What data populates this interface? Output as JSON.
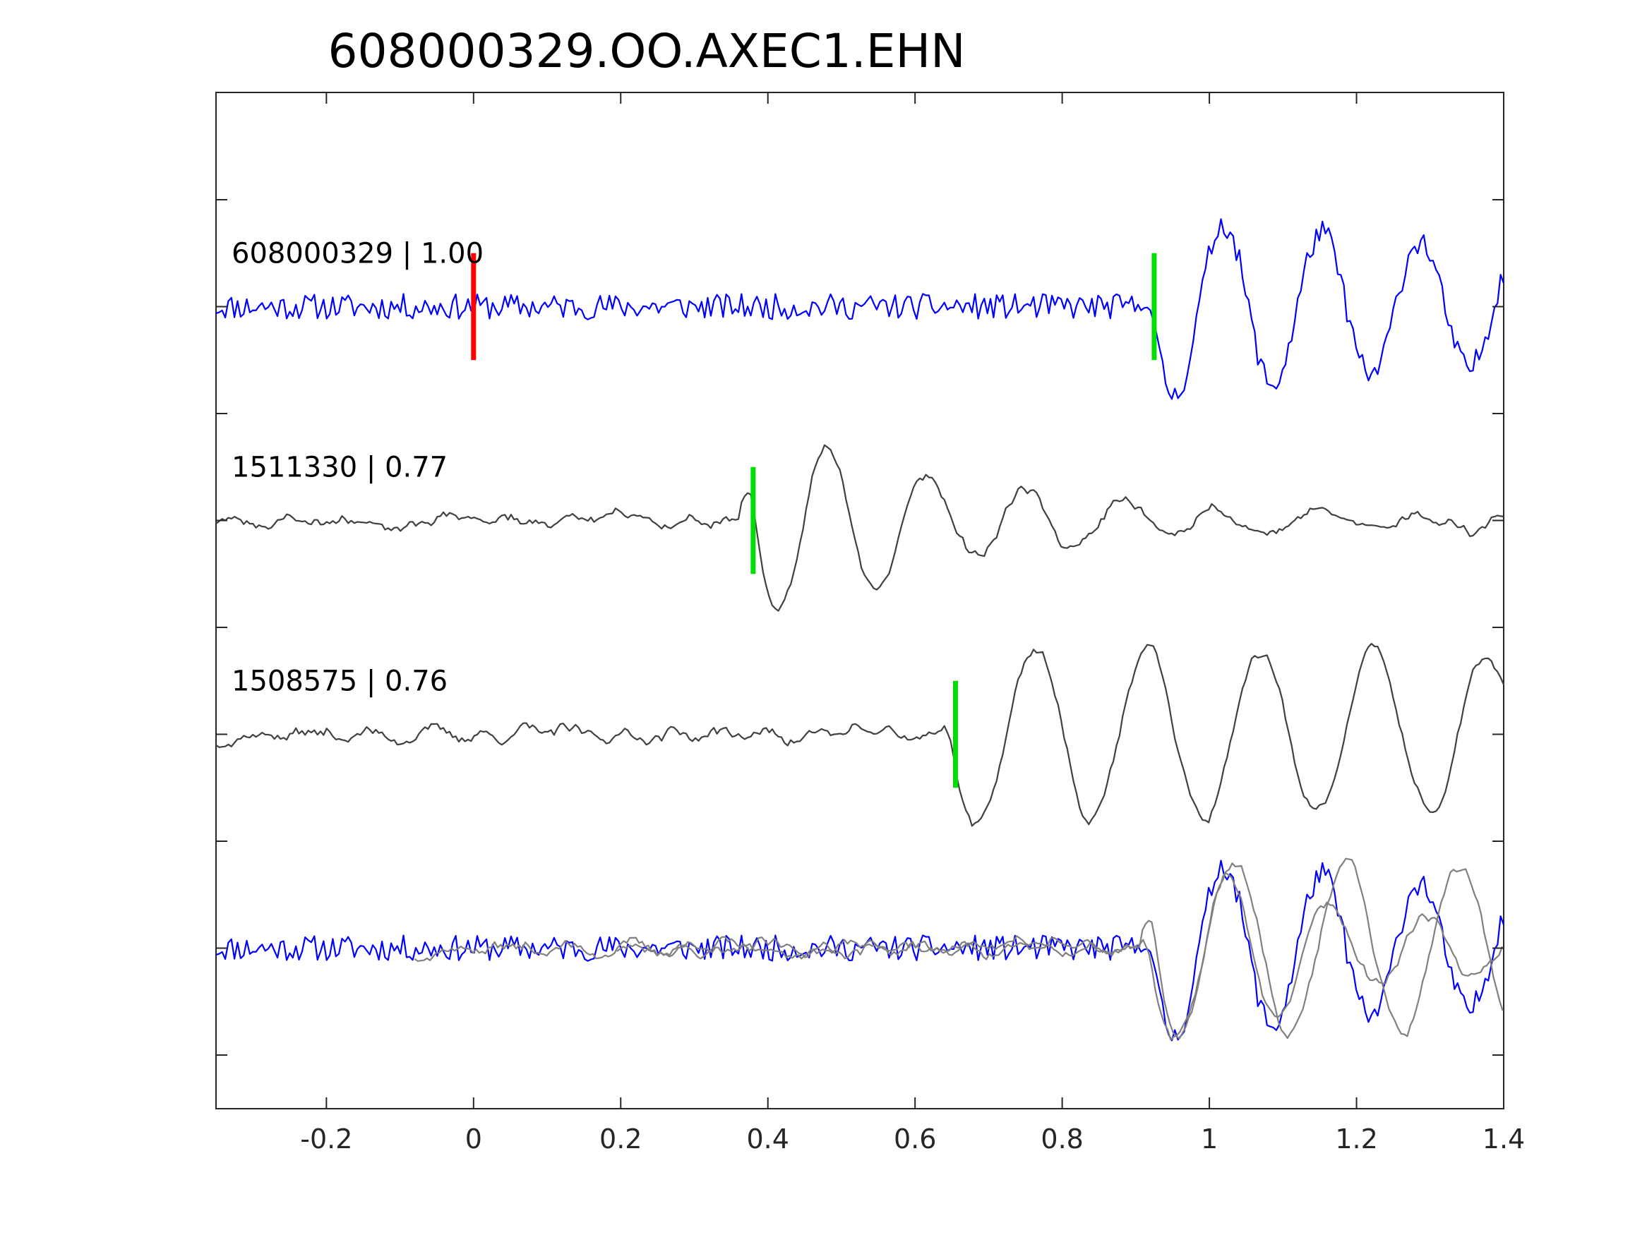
{
  "chart_data": {
    "type": "line",
    "title": "608000329.OO.AXEC1.EHN",
    "xlabel": "",
    "ylabel": "",
    "xlim": [
      -0.35,
      1.4
    ],
    "ylim": [
      -5.5,
      4.0
    ],
    "x_ticks": [
      "-0.2",
      "0",
      "0.2",
      "0.4",
      "0.6",
      "0.8",
      "1",
      "1.2",
      "1.4"
    ],
    "x_tick_values": [
      -0.2,
      0,
      0.2,
      0.4,
      0.6,
      0.8,
      1.0,
      1.2,
      1.4
    ],
    "y_tick_values": [
      3,
      2,
      1,
      0,
      -1,
      -2,
      -3,
      -4,
      -5
    ],
    "y_tick_labels_shown": false,
    "grid": false,
    "colors": {
      "primary_trace": "#0000ff",
      "similar_trace": "#404040",
      "overlay_trace": "#808080",
      "reference_pick": "#ff0000",
      "phase_pick": "#00dd00"
    },
    "traces": [
      {
        "label": "608000329 | 1.00",
        "offset": 2,
        "color": "#0000ff",
        "style": "noisy",
        "seed": 11,
        "noise": 0.12,
        "onset": 0.925,
        "amplitude": 0.85,
        "freq": 7.5,
        "decay": 0.9,
        "phase": 3.4
      },
      {
        "label": "1511330 | 0.77",
        "offset": 0,
        "color": "#404040",
        "style": "smooth",
        "seed": 23,
        "noise": 0.09,
        "onset": 0.38,
        "amplitude": 1.0,
        "freq": 7.5,
        "decay": 3.2,
        "phase": 3.0
      },
      {
        "label": "1508575 | 0.76",
        "offset": -2,
        "color": "#404040",
        "style": "smooth",
        "seed": 37,
        "noise": 0.1,
        "onset": 0.655,
        "amplitude": 0.85,
        "freq": 6.5,
        "decay": 0.25,
        "phase": 3.5
      }
    ],
    "picks": [
      {
        "x": 0.0,
        "trace": 0,
        "color": "#ff0000"
      },
      {
        "x": 0.925,
        "trace": 0,
        "color": "#00dd00"
      },
      {
        "x": 0.38,
        "trace": 1,
        "color": "#00dd00"
      },
      {
        "x": 0.655,
        "trace": 2,
        "color": "#00dd00"
      }
    ],
    "overlay": {
      "offset": -4,
      "aligned_on_green_picks": true,
      "align_to": 0.925,
      "members": [
        0,
        1,
        2
      ]
    }
  }
}
